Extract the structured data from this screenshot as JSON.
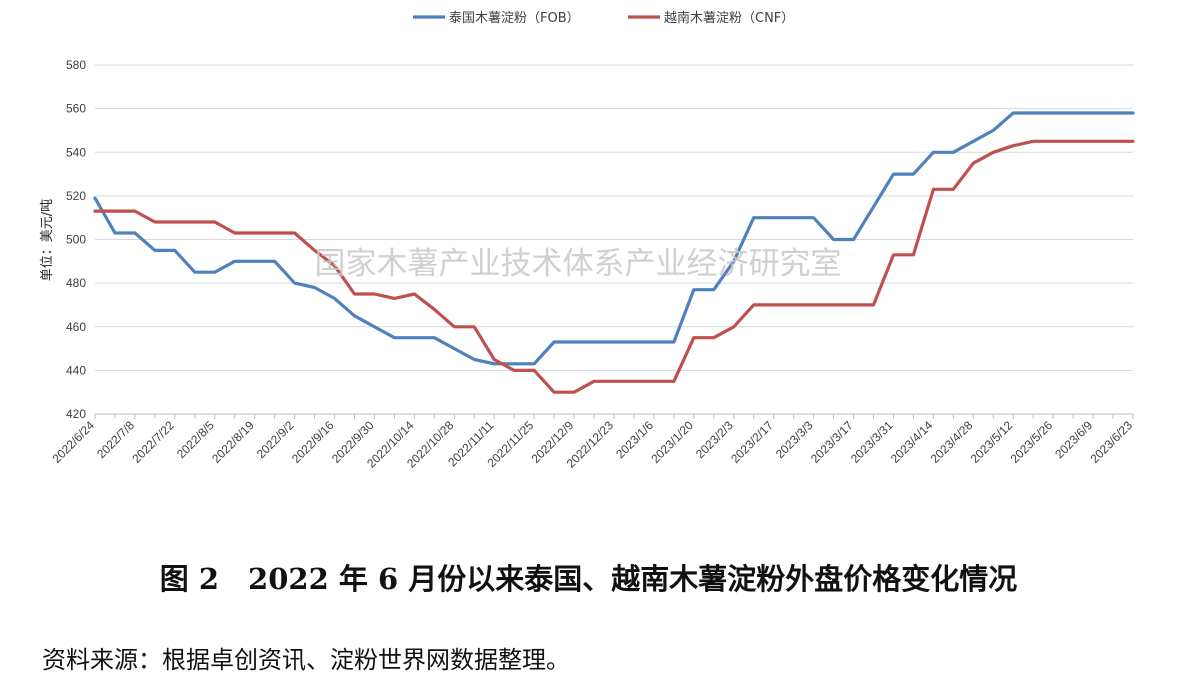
{
  "chart_data": {
    "type": "line",
    "title": "",
    "xlabel": "",
    "ylabel": "单位：美元/吨",
    "ylim": [
      420,
      580
    ],
    "yticks": [
      420,
      440,
      460,
      480,
      500,
      520,
      540,
      560,
      580
    ],
    "grid": true,
    "legend_position": "top-center",
    "xtick_labels": [
      "2022/6/24",
      "2022/7/8",
      "2022/7/22",
      "2022/8/5",
      "2022/8/19",
      "2022/9/2",
      "2022/9/16",
      "2022/9/30",
      "2022/10/14",
      "2022/10/28",
      "2022/11/11",
      "2022/11/25",
      "2022/12/9",
      "2022/12/23",
      "2023/1/6",
      "2023/1/20",
      "2023/2/3",
      "2023/2/17",
      "2023/3/3",
      "2023/3/17",
      "2023/3/31",
      "2023/4/14",
      "2023/4/28",
      "2023/5/12",
      "2023/5/26",
      "2023/6/9",
      "2023/6/23"
    ],
    "x": [
      "2022/6/24",
      "2022/7/1",
      "2022/7/8",
      "2022/7/15",
      "2022/7/22",
      "2022/7/29",
      "2022/8/5",
      "2022/8/12",
      "2022/8/19",
      "2022/8/26",
      "2022/9/2",
      "2022/9/9",
      "2022/9/16",
      "2022/9/23",
      "2022/9/30",
      "2022/10/7",
      "2022/10/14",
      "2022/10/21",
      "2022/10/28",
      "2022/11/4",
      "2022/11/11",
      "2022/11/18",
      "2022/11/25",
      "2022/12/2",
      "2022/12/9",
      "2022/12/16",
      "2022/12/23",
      "2022/12/30",
      "2023/1/6",
      "2023/1/13",
      "2023/1/20",
      "2023/1/27",
      "2023/2/3",
      "2023/2/10",
      "2023/2/17",
      "2023/2/24",
      "2023/3/3",
      "2023/3/10",
      "2023/3/17",
      "2023/3/24",
      "2023/3/31",
      "2023/4/7",
      "2023/4/14",
      "2023/4/21",
      "2023/4/28",
      "2023/5/5",
      "2023/5/12",
      "2023/5/19",
      "2023/5/26",
      "2023/6/2",
      "2023/6/9",
      "2023/6/16",
      "2023/6/23"
    ],
    "series": [
      {
        "name": "泰国木薯淀粉（FOB）",
        "color": "#4f81bd",
        "values": [
          519,
          503,
          503,
          495,
          495,
          485,
          485,
          490,
          490,
          490,
          480,
          478,
          473,
          465,
          460,
          455,
          455,
          455,
          450,
          445,
          443,
          443,
          443,
          453,
          453,
          453,
          453,
          453,
          453,
          453,
          477,
          477,
          490,
          510,
          510,
          510,
          510,
          500,
          500,
          515,
          530,
          530,
          540,
          540,
          545,
          550,
          558,
          558,
          558,
          558,
          558,
          558,
          558
        ]
      },
      {
        "name": "越南木薯淀粉（CNF）",
        "color": "#c0504d",
        "values": [
          513,
          513,
          513,
          508,
          508,
          508,
          508,
          503,
          503,
          503,
          503,
          495,
          488,
          475,
          475,
          473,
          475,
          468,
          460,
          460,
          445,
          440,
          440,
          430,
          430,
          435,
          435,
          435,
          435,
          435,
          455,
          455,
          460,
          470,
          470,
          470,
          470,
          470,
          470,
          470,
          493,
          493,
          523,
          523,
          535,
          540,
          543,
          545,
          545,
          545,
          545,
          545,
          545
        ]
      }
    ]
  },
  "watermark": "国家木薯产业技术体系产业经济研究室",
  "caption": "图 2　2022 年 6 月份以来泰国、越南木薯淀粉外盘价格变化情况",
  "source_note": "资料来源：根据卓创资讯、淀粉世界网数据整理。"
}
